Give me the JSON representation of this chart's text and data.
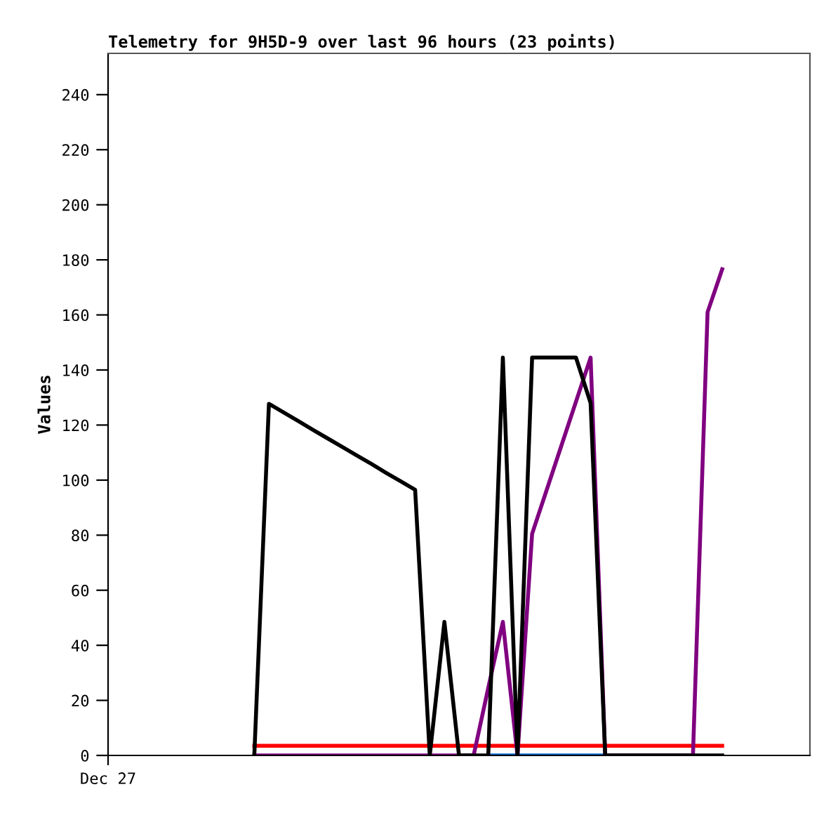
{
  "chart_data": {
    "type": "line",
    "title": "Telemetry for 9H5D-9 over last 96 hours (23 points)",
    "ylabel": "Values",
    "categories": [
      "Dec 27",
      null,
      null,
      null,
      null,
      null,
      null,
      null,
      null,
      null,
      null,
      null,
      null,
      null,
      null,
      null,
      null,
      null,
      null,
      null,
      null,
      null,
      null,
      null,
      null,
      null,
      null,
      null,
      null,
      null,
      null,
      null,
      null,
      null,
      null,
      null,
      null,
      null,
      null,
      null,
      null,
      null,
      null,
      null,
      null,
      null,
      null,
      null,
      null
    ],
    "ylim": [
      0,
      255
    ],
    "yticks": [
      0,
      20,
      40,
      60,
      80,
      100,
      120,
      140,
      160,
      180,
      200,
      220,
      240
    ],
    "marker": "none",
    "line_style": "solid",
    "series": [
      {
        "color": "#ff0000",
        "values": [
          null,
          null,
          null,
          null,
          null,
          null,
          null,
          null,
          null,
          null,
          3.5,
          3.5,
          3.5,
          3.5,
          3.5,
          3.5,
          3.5,
          3.5,
          3.5,
          3.5,
          3.5,
          3.5,
          3.5,
          3.5,
          3.5,
          3.5,
          3.5,
          3.5,
          3.5,
          3.5,
          3.5,
          3.5,
          3.5,
          3.5,
          3.5,
          3.5,
          3.5,
          3.5,
          3.5,
          3.5,
          3.5,
          3.5,
          3.5,
          null,
          null,
          null,
          null,
          null,
          null
        ]
      },
      {
        "color": "#0066cc",
        "values": [
          null,
          null,
          null,
          null,
          null,
          null,
          null,
          null,
          null,
          null,
          null,
          null,
          null,
          null,
          null,
          null,
          null,
          null,
          null,
          null,
          null,
          null,
          null,
          null,
          null,
          null,
          0,
          0,
          0,
          0,
          0,
          0,
          0,
          0,
          0,
          null,
          null,
          null,
          null,
          null,
          null,
          null,
          null,
          null,
          null,
          null,
          null,
          null,
          null
        ]
      },
      {
        "color": "#800080",
        "values": [
          null,
          null,
          null,
          null,
          null,
          null,
          null,
          null,
          null,
          null,
          0,
          0,
          0,
          0,
          0,
          0,
          0,
          0,
          0,
          0,
          0,
          0,
          0,
          0,
          0,
          0,
          24.5,
          48.5,
          0,
          80.5,
          96.5,
          112.5,
          128.5,
          144.5,
          0,
          0,
          0,
          0,
          0,
          0,
          0,
          161,
          176.6,
          null,
          null,
          null,
          null,
          null,
          null
        ]
      },
      {
        "color": "#000000",
        "values": [
          null,
          null,
          null,
          null,
          null,
          null,
          null,
          null,
          null,
          null,
          0,
          127.7,
          124.6,
          121.5,
          118.3,
          115.2,
          112.1,
          109.0,
          105.9,
          102.7,
          99.6,
          96.5,
          0,
          48.5,
          0,
          0,
          0,
          144.5,
          0,
          144.5,
          144.5,
          144.5,
          144.5,
          128,
          0,
          0,
          0,
          0,
          0,
          0,
          0,
          0,
          0,
          null,
          null,
          null,
          null,
          null,
          null
        ]
      }
    ]
  }
}
